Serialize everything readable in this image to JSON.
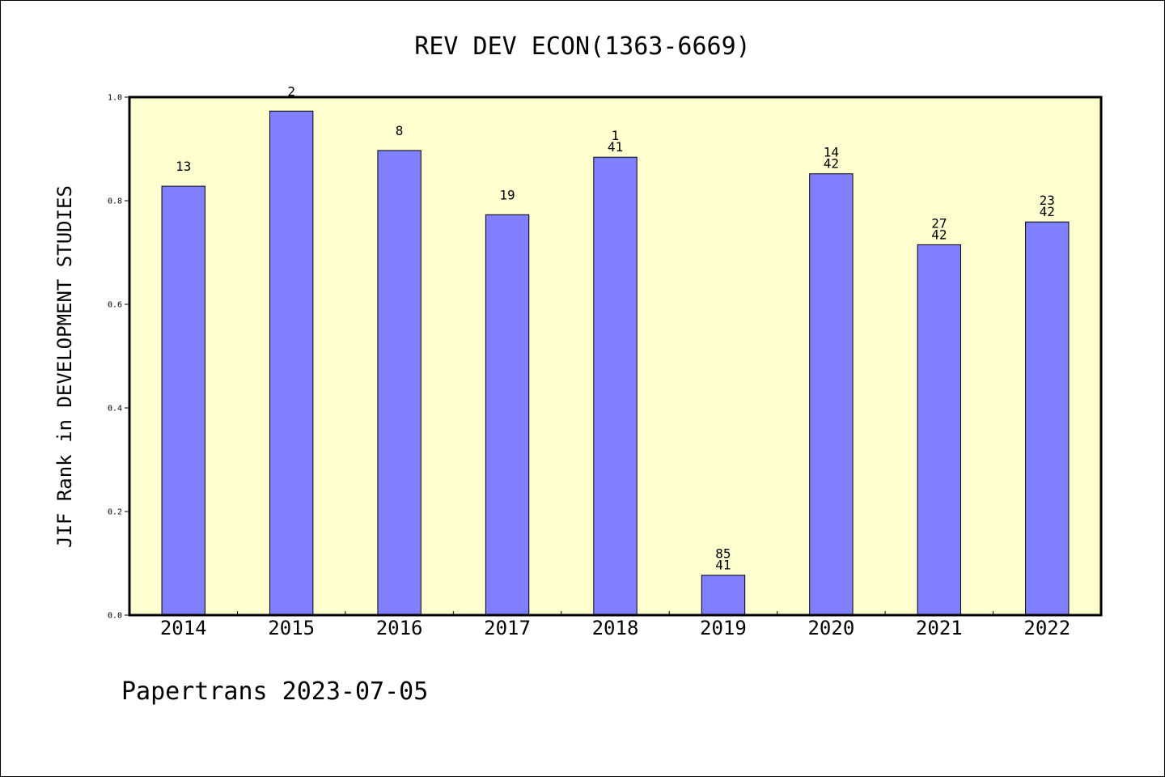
{
  "chart_data": {
    "type": "bar",
    "title": "REV DEV ECON(1363-6669)",
    "xlabel": "",
    "ylabel": "JIF Rank in DEVELOPMENT STUDIES",
    "ylim": [
      0,
      1.0
    ],
    "yticks": [
      "0.0",
      "0.2",
      "0.4",
      "0.6",
      "0.8",
      "1.0"
    ],
    "grid": false,
    "categories": [
      "2014",
      "2015",
      "2016",
      "2017",
      "2018",
      "2019",
      "2020",
      "2021",
      "2022"
    ],
    "values": [
      0.828,
      0.973,
      0.897,
      0.773,
      0.884,
      0.077,
      0.852,
      0.715,
      0.759
    ],
    "bar_labels": [
      [
        "13"
      ],
      [
        "2"
      ],
      [
        "8"
      ],
      [
        "19"
      ],
      [
        "1",
        "41"
      ],
      [
        "85",
        "41"
      ],
      [
        "14",
        "42"
      ],
      [
        "27",
        "42"
      ],
      [
        "23",
        "42"
      ]
    ],
    "colors": {
      "bar": "#8080ff",
      "plot_background": "#ffffd0"
    }
  },
  "footer": {
    "text": "Papertrans 2023-07-05"
  }
}
